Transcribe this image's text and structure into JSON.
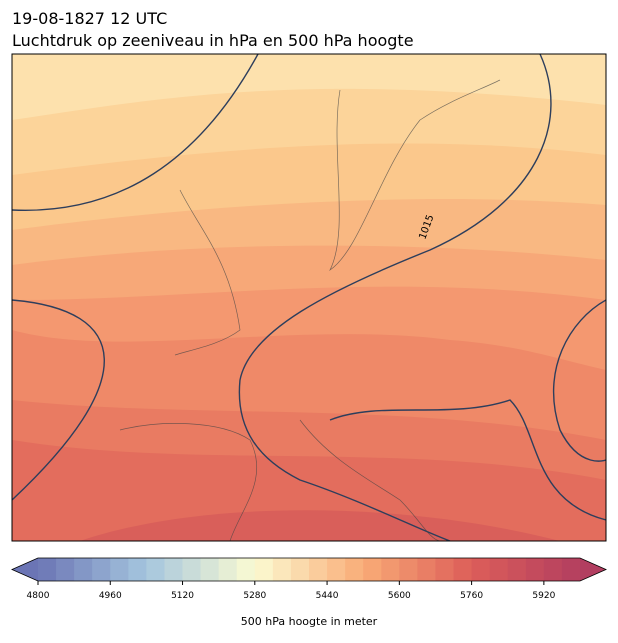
{
  "title": "19-08-1827 12 UTC",
  "subtitle": "Luchtdruk op zeeniveau in hPa en 500 hPa hoogte",
  "contour_label": "1015",
  "colorbar": {
    "label": "500 hPa hoogte in meter",
    "lim": [
      4800,
      6000
    ],
    "ticks": [
      4800,
      4960,
      5120,
      5280,
      5440,
      5600,
      5760,
      5920
    ],
    "step": 40,
    "colormap": [
      "#6b75b5",
      "#a5c6de",
      "#fbfbd2",
      "#f9ab76",
      "#dd5e59",
      "#b23e60"
    ]
  }
}
